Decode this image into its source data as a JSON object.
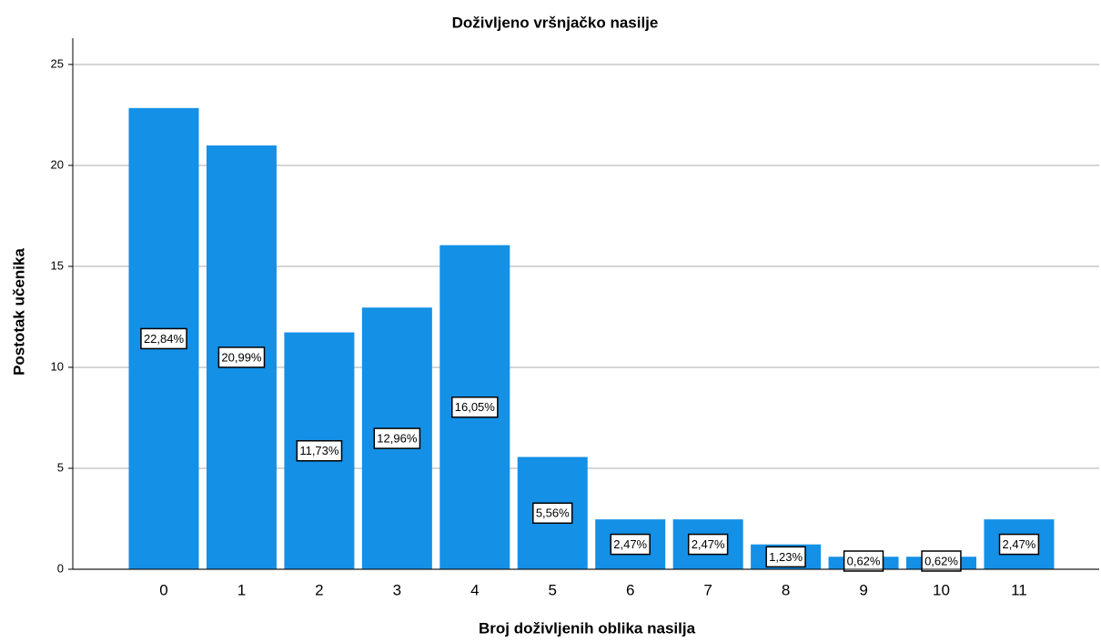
{
  "chart_data": {
    "type": "bar",
    "title": "Doživljeno vršnjačko nasilje",
    "x_label": "Broj doživljenih oblika nasilja",
    "y_label": "Postotak učenika",
    "categories": [
      "0",
      "1",
      "2",
      "3",
      "4",
      "5",
      "6",
      "7",
      "8",
      "9",
      "10",
      "11"
    ],
    "values": [
      22.84,
      20.99,
      11.73,
      12.96,
      16.05,
      5.56,
      2.47,
      2.47,
      1.23,
      0.62,
      0.62,
      2.47
    ],
    "value_labels": [
      "22,84%",
      "20,99%",
      "11,73%",
      "12,96%",
      "16,05%",
      "5,56%",
      "2,47%",
      "2,47%",
      "1,23%",
      "0,62%",
      "0,62%",
      "2,47%"
    ],
    "color": "#1490e6",
    "ylim": [
      0,
      26.3
    ],
    "yticks": [
      0,
      5,
      10,
      15,
      20,
      25
    ],
    "grid": true
  }
}
